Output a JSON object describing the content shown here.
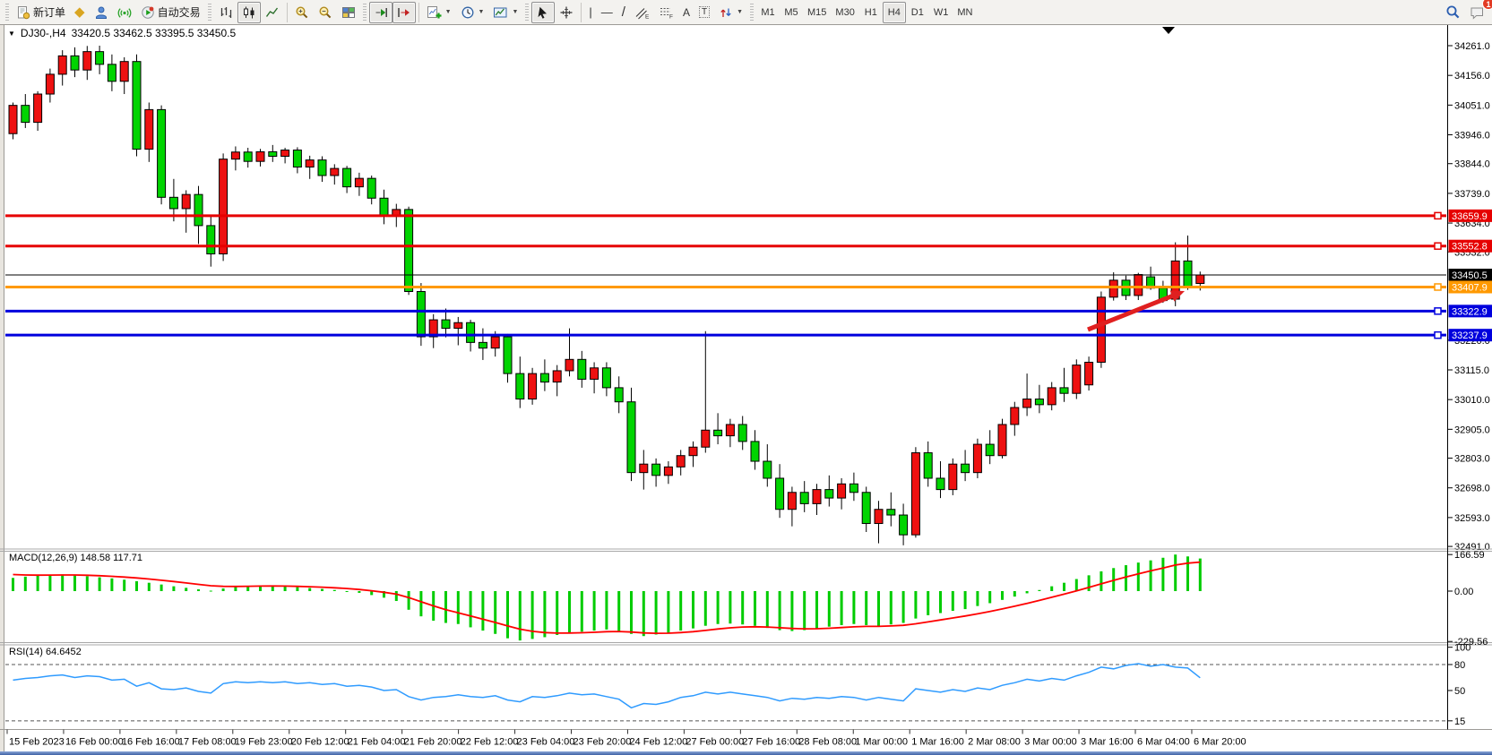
{
  "toolbar": {
    "new_order_label": "新订单",
    "auto_trading_label": "自动交易",
    "timeframes": [
      "M1",
      "M5",
      "M15",
      "M30",
      "H1",
      "H4",
      "D1",
      "W1",
      "MN"
    ],
    "active_timeframe": "H4",
    "notification_badge": "1",
    "glyphs": {
      "market_watch": "◆",
      "vline": "|",
      "hline": "—",
      "trendline": "/",
      "text_tool": "A",
      "label_tool": "T",
      "channel_sub": "E",
      "fibo_sub": "F",
      "caret": "▼"
    }
  },
  "chart": {
    "symbol_period": "DJ30-,H4",
    "ohlc_display": "33420.5 33462.5 33395.5 33450.5",
    "dropdown_glyph": "▼",
    "shift_marker_glyph": "▼",
    "price_tags": [
      {
        "label": "33659.9",
        "color": "#e60000",
        "type": "resistance-line"
      },
      {
        "label": "33552.8",
        "color": "#e60000",
        "type": "resistance-line"
      },
      {
        "label": "33450.5",
        "color": "#000000",
        "type": "current-price-line"
      },
      {
        "label": "33407.9",
        "color": "#ff9900",
        "type": "support-line"
      },
      {
        "label": "33322.9",
        "color": "#0000dd",
        "type": "support-line"
      },
      {
        "label": "33237.9",
        "color": "#0000dd",
        "type": "support-line"
      }
    ],
    "colors": {
      "up_candle": "#ee1111",
      "down_candle": "#00d400",
      "macd_bar": "#00cc00",
      "macd_signal": "#ff0000",
      "rsi_line": "#2f9bff",
      "arrow": "#e02020"
    }
  },
  "indicators": {
    "macd": {
      "label": "MACD(12,26,9) 148.58 117.71",
      "axis": [
        "166.59",
        "0.00",
        "-229.56"
      ]
    },
    "rsi": {
      "label": "RSI(14) 64.6452",
      "axis": [
        "100",
        "80",
        "50",
        "15"
      ]
    }
  },
  "chart_data": [
    {
      "type": "candlestick",
      "title": "DJ30-,H4",
      "ylim": [
        32485,
        34280
      ],
      "y_ticks": [
        "34261.0",
        "34156.0",
        "34051.0",
        "33946.0",
        "33844.0",
        "33739.0",
        "33634.0",
        "33532.0",
        "33220.0",
        "33115.0",
        "33010.0",
        "32905.0",
        "32803.0",
        "32698.0",
        "32593.0",
        "32491.0"
      ],
      "x_labels": [
        "15 Feb 2023",
        "16 Feb 00:00",
        "16 Feb 16:00",
        "17 Feb 08:00",
        "19 Feb 23:00",
        "20 Feb 12:00",
        "21 Feb 04:00",
        "21 Feb 20:00",
        "22 Feb 12:00",
        "23 Feb 04:00",
        "23 Feb 20:00",
        "24 Feb 12:00",
        "27 Feb 00:00",
        "27 Feb 16:00",
        "28 Feb 08:00",
        "1 Mar 00:00",
        "1 Mar 16:00",
        "2 Mar 08:00",
        "3 Mar 00:00",
        "3 Mar 16:00",
        "6 Mar 04:00",
        "6 Mar 20:00"
      ],
      "last_bar_ohlc": [
        33420.5,
        33462.5,
        33395.5,
        33450.5
      ],
      "candles": [
        [
          33950,
          34060,
          33930,
          34050
        ],
        [
          34050,
          34090,
          33970,
          33990
        ],
        [
          33990,
          34100,
          33960,
          34090
        ],
        [
          34090,
          34180,
          34060,
          34160
        ],
        [
          34160,
          34245,
          34120,
          34225
        ],
        [
          34225,
          34255,
          34150,
          34175
        ],
        [
          34175,
          34260,
          34140,
          34240
        ],
        [
          34240,
          34261,
          34160,
          34195
        ],
        [
          34195,
          34230,
          34100,
          34135
        ],
        [
          34135,
          34220,
          34090,
          34205
        ],
        [
          34205,
          34230,
          33870,
          33895
        ],
        [
          33895,
          34060,
          33850,
          34035
        ],
        [
          34035,
          34050,
          33700,
          33725
        ],
        [
          33725,
          33790,
          33640,
          33685
        ],
        [
          33685,
          33750,
          33600,
          33735
        ],
        [
          33735,
          33765,
          33560,
          33625
        ],
        [
          33625,
          33660,
          33480,
          33525
        ],
        [
          33525,
          33880,
          33500,
          33860
        ],
        [
          33860,
          33905,
          33820,
          33885
        ],
        [
          33885,
          33900,
          33830,
          33852
        ],
        [
          33852,
          33896,
          33834,
          33886
        ],
        [
          33886,
          33910,
          33850,
          33870
        ],
        [
          33870,
          33900,
          33845,
          33892
        ],
        [
          33892,
          33902,
          33810,
          33832
        ],
        [
          33832,
          33872,
          33790,
          33857
        ],
        [
          33857,
          33870,
          33780,
          33802
        ],
        [
          33802,
          33842,
          33770,
          33827
        ],
        [
          33827,
          33836,
          33740,
          33762
        ],
        [
          33762,
          33812,
          33730,
          33792
        ],
        [
          33792,
          33802,
          33700,
          33722
        ],
        [
          33722,
          33752,
          33630,
          33662
        ],
        [
          33662,
          33702,
          33620,
          33682
        ],
        [
          33682,
          33692,
          33380,
          33392
        ],
        [
          33392,
          33422,
          33200,
          33232
        ],
        [
          33232,
          33312,
          33192,
          33292
        ],
        [
          33292,
          33332,
          33230,
          33262
        ],
        [
          33262,
          33302,
          33202,
          33282
        ],
        [
          33282,
          33292,
          33180,
          33212
        ],
        [
          33212,
          33262,
          33150,
          33192
        ],
        [
          33192,
          33252,
          33162,
          33232
        ],
        [
          33232,
          33242,
          33070,
          33102
        ],
        [
          33102,
          33162,
          32980,
          33012
        ],
        [
          33012,
          33122,
          32992,
          33102
        ],
        [
          33102,
          33152,
          33040,
          33072
        ],
        [
          33072,
          33132,
          33022,
          33112
        ],
        [
          33112,
          33262,
          33092,
          33152
        ],
        [
          33152,
          33182,
          33052,
          33082
        ],
        [
          33082,
          33142,
          33032,
          33122
        ],
        [
          33122,
          33142,
          33022,
          33052
        ],
        [
          33052,
          33092,
          32962,
          33002
        ],
        [
          33002,
          33052,
          32722,
          32752
        ],
        [
          32752,
          32832,
          32692,
          32782
        ],
        [
          32782,
          32802,
          32702,
          32742
        ],
        [
          32742,
          32792,
          32712,
          32772
        ],
        [
          32772,
          32832,
          32742,
          32812
        ],
        [
          32812,
          32862,
          32772,
          32842
        ],
        [
          32842,
          33252,
          32822,
          32902
        ],
        [
          32902,
          32962,
          32852,
          32882
        ],
        [
          32882,
          32942,
          32842,
          32922
        ],
        [
          32922,
          32952,
          32832,
          32862
        ],
        [
          32862,
          32902,
          32762,
          32792
        ],
        [
          32792,
          32852,
          32702,
          32732
        ],
        [
          32732,
          32782,
          32592,
          32622
        ],
        [
          32622,
          32702,
          32562,
          32682
        ],
        [
          32682,
          32722,
          32612,
          32642
        ],
        [
          32642,
          32712,
          32602,
          32692
        ],
        [
          32692,
          32742,
          32632,
          32662
        ],
        [
          32662,
          32732,
          32622,
          32712
        ],
        [
          32712,
          32752,
          32652,
          32682
        ],
        [
          32682,
          32702,
          32542,
          32572
        ],
        [
          32572,
          32652,
          32502,
          32622
        ],
        [
          32622,
          32682,
          32562,
          32602
        ],
        [
          32602,
          32642,
          32495,
          32532
        ],
        [
          32532,
          32842,
          32522,
          32822
        ],
        [
          32822,
          32862,
          32702,
          32732
        ],
        [
          32732,
          32792,
          32662,
          32692
        ],
        [
          32692,
          32802,
          32672,
          32782
        ],
        [
          32782,
          32832,
          32722,
          32752
        ],
        [
          32752,
          32872,
          32732,
          32852
        ],
        [
          32852,
          32902,
          32782,
          32812
        ],
        [
          32812,
          32942,
          32802,
          32922
        ],
        [
          32922,
          33002,
          32882,
          32982
        ],
        [
          32982,
          33102,
          32952,
          33012
        ],
        [
          33012,
          33062,
          32962,
          32992
        ],
        [
          32992,
          33072,
          32972,
          33052
        ],
        [
          33052,
          33122,
          33002,
          33032
        ],
        [
          33032,
          33152,
          33012,
          33132
        ],
        [
          33062,
          33162,
          33042,
          33142
        ],
        [
          33142,
          33392,
          33122,
          33372
        ],
        [
          33372,
          33460,
          33360,
          33432
        ],
        [
          33432,
          33448,
          33362,
          33378
        ],
        [
          33378,
          33458,
          33362,
          33452
        ],
        [
          33444,
          33480,
          33398,
          33404
        ],
        [
          33404,
          33430,
          33352,
          33360
        ],
        [
          33365,
          33566,
          33340,
          33500
        ],
        [
          33500,
          33590,
          33398,
          33410
        ],
        [
          33420.5,
          33462.5,
          33395.5,
          33450.5
        ]
      ]
    },
    {
      "type": "bar",
      "title": "MACD(12,26,9)",
      "main_last": 148.58,
      "signal_last": 117.71,
      "axis_ticks": [
        166.59,
        0,
        -229.56
      ],
      "values": [
        60,
        66,
        70,
        74,
        76,
        72,
        68,
        63,
        58,
        52,
        45,
        38,
        30,
        22,
        15,
        8,
        2,
        12,
        20,
        24,
        26,
        24,
        22,
        18,
        14,
        10,
        5,
        0,
        -8,
        -18,
        -30,
        -45,
        -85,
        -115,
        -135,
        -145,
        -150,
        -165,
        -180,
        -195,
        -215,
        -225,
        -218,
        -210,
        -200,
        -190,
        -185,
        -180,
        -175,
        -182,
        -195,
        -205,
        -198,
        -190,
        -180,
        -170,
        -158,
        -150,
        -148,
        -152,
        -158,
        -168,
        -178,
        -182,
        -178,
        -170,
        -162,
        -155,
        -150,
        -155,
        -160,
        -152,
        -145,
        -125,
        -110,
        -100,
        -90,
        -82,
        -68,
        -55,
        -40,
        -25,
        -10,
        5,
        22,
        38,
        55,
        72,
        90,
        105,
        118,
        130,
        140,
        152,
        166.59,
        158,
        148.58
      ]
    },
    {
      "type": "line",
      "title": "RSI(14)",
      "last": 64.6452,
      "levels": [
        80,
        15
      ],
      "axis_ticks": [
        100,
        80,
        50,
        15
      ],
      "values": [
        62,
        64,
        65,
        67,
        68,
        65,
        67,
        66,
        62,
        63,
        55,
        59,
        52,
        51,
        53,
        49,
        47,
        58,
        60,
        59,
        60,
        59,
        60,
        58,
        59,
        57,
        58,
        55,
        56,
        54,
        50,
        51,
        43,
        39,
        42,
        43,
        45,
        43,
        42,
        44,
        39,
        37,
        43,
        42,
        44,
        47,
        45,
        46,
        43,
        40,
        30,
        35,
        34,
        37,
        42,
        44,
        48,
        46,
        48,
        46,
        44,
        42,
        38,
        41,
        40,
        42,
        41,
        43,
        42,
        39,
        42,
        40,
        38,
        52,
        50,
        48,
        51,
        49,
        53,
        51,
        56,
        59,
        63,
        61,
        64,
        62,
        67,
        71,
        77,
        75,
        79,
        81,
        78,
        80,
        77,
        76,
        64.65
      ]
    }
  ],
  "annotation_arrow": {
    "color": "#e02020",
    "from": [
      1214,
      340
    ],
    "to": [
      1322,
      297
    ]
  }
}
